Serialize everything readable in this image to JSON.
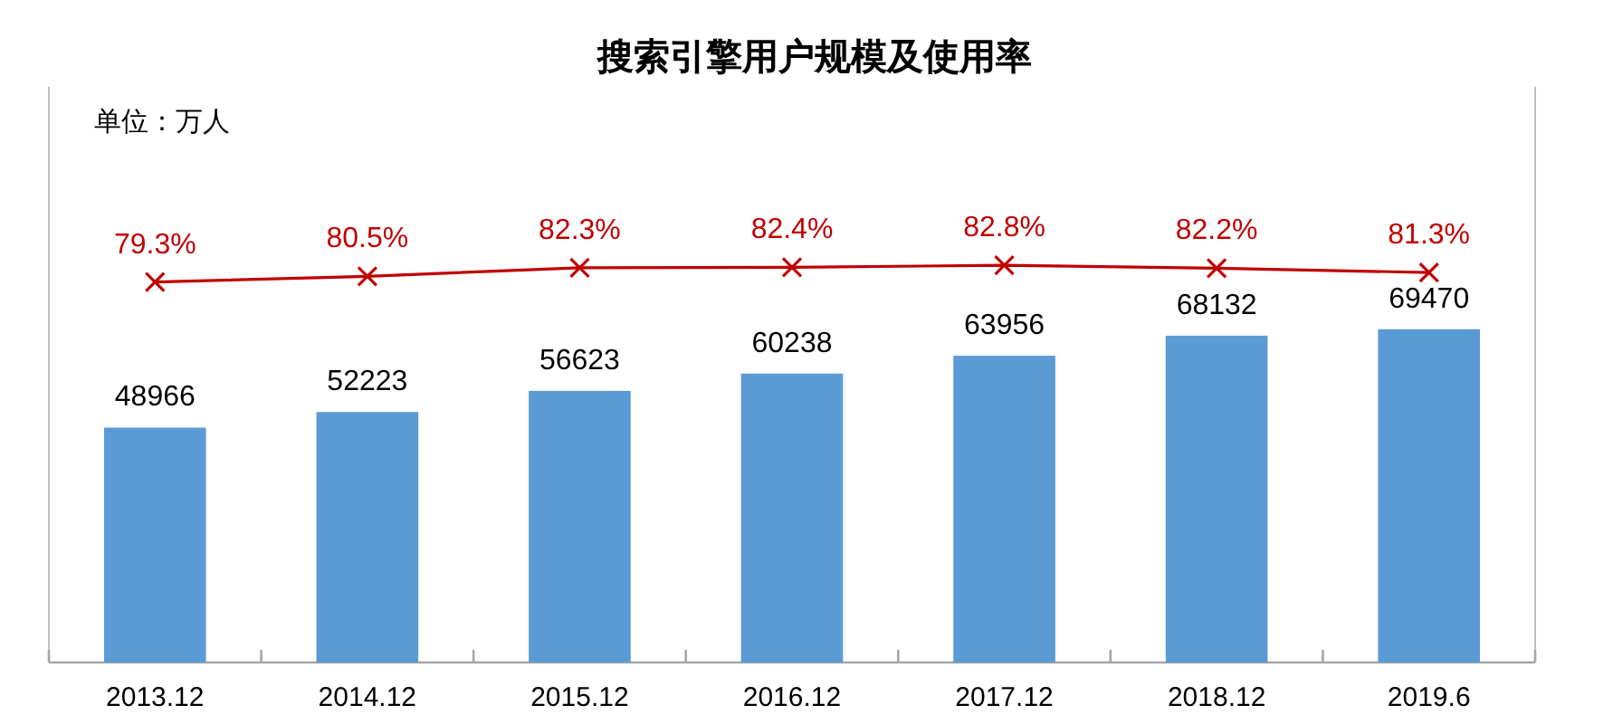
{
  "chart_data": {
    "type": "bar",
    "title": "搜索引擎用户规模及使用率",
    "subtitle": "单位：万人",
    "categories": [
      "2013.12",
      "2014.12",
      "2015.12",
      "2016.12",
      "2017.12",
      "2018.12",
      "2019.6"
    ],
    "series": [
      {
        "color": "#5b9bd5",
        "values": [
          48966,
          52223,
          56623,
          60238,
          63956,
          68132,
          69470
        ]
      },
      {
        "type": "line",
        "axis": "y2",
        "color": "#c00000",
        "marker": "cross",
        "line_style": "solid",
        "values": [
          79.3,
          80.5,
          82.3,
          82.4,
          82.8,
          82.2,
          81.3
        ],
        "value_labels": [
          "79.3%",
          "80.5%",
          "82.3%",
          "82.4%",
          "82.8%",
          "82.2%",
          "81.3%"
        ]
      }
    ],
    "ylim": [
      0,
      120000
    ],
    "y2lim": [
      0,
      120
    ],
    "tick_labels": "x",
    "data_labels": true
  }
}
